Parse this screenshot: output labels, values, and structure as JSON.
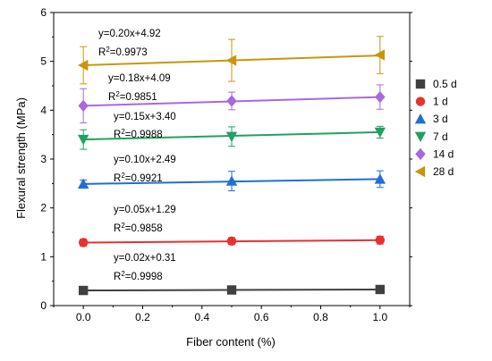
{
  "chart_data": {
    "type": "scatter",
    "xlabel": "Fiber content (%)",
    "ylabel": "Flexural strength (MPa)",
    "xlim": [
      -0.1,
      1.1
    ],
    "ylim": [
      0,
      6
    ],
    "x_ticks": [
      "0.0",
      "0.2",
      "0.4",
      "0.6",
      "0.8",
      "1.0"
    ],
    "y_ticks": [
      "0",
      "1",
      "2",
      "3",
      "4",
      "5",
      "6"
    ],
    "grid": false,
    "legend_position": "right",
    "x": [
      0.0,
      0.5,
      1.0
    ],
    "series": [
      {
        "name": "0.5 d",
        "marker": "square",
        "color": "#404040",
        "values": [
          0.31,
          0.32,
          0.33
        ],
        "errors": [
          0.03,
          0.03,
          0.03
        ],
        "fit": {
          "slope": 0.02,
          "intercept": 0.31
        },
        "equation": "y=0.02x+0.31",
        "r2_label": "R",
        "r2_value": "=0.9998"
      },
      {
        "name": "1 d",
        "marker": "circle",
        "color": "#e8312f",
        "values": [
          1.29,
          1.32,
          1.34
        ],
        "errors": [
          0.07,
          0.07,
          0.08
        ],
        "fit": {
          "slope": 0.05,
          "intercept": 1.29
        },
        "equation": "y=0.05x+1.29",
        "r2_label": "R",
        "r2_value": "=0.9858"
      },
      {
        "name": "3 d",
        "marker": "triangle-up",
        "color": "#1f6fd6",
        "values": [
          2.49,
          2.55,
          2.59
        ],
        "errors": [
          0.08,
          0.2,
          0.17
        ],
        "fit": {
          "slope": 0.1,
          "intercept": 2.49
        },
        "equation": "y=0.10x+2.49",
        "r2_label": "R",
        "r2_value": "=0.9921"
      },
      {
        "name": "7 d",
        "marker": "triangle-down",
        "color": "#22a060",
        "values": [
          3.4,
          3.46,
          3.55
        ],
        "errors": [
          0.2,
          0.2,
          0.12
        ],
        "fit": {
          "slope": 0.15,
          "intercept": 3.4
        },
        "equation": "y=0.15x+3.40",
        "r2_label": "R",
        "r2_value": "=0.9988"
      },
      {
        "name": "14 d",
        "marker": "diamond",
        "color": "#a868e0",
        "values": [
          4.09,
          4.19,
          4.27
        ],
        "errors": [
          0.35,
          0.18,
          0.25
        ],
        "fit": {
          "slope": 0.18,
          "intercept": 4.09
        },
        "equation": "y=0.18x+4.09",
        "r2_label": "R",
        "r2_value": "=0.9851"
      },
      {
        "name": "28 d",
        "marker": "triangle-left",
        "color": "#c8960c",
        "values": [
          4.92,
          5.02,
          5.13
        ],
        "errors": [
          0.38,
          0.43,
          0.38
        ],
        "fit": {
          "slope": 0.2,
          "intercept": 4.92
        },
        "equation": "y=0.20x+4.92",
        "r2_label": "R",
        "r2_value": "=0.9973"
      }
    ]
  }
}
